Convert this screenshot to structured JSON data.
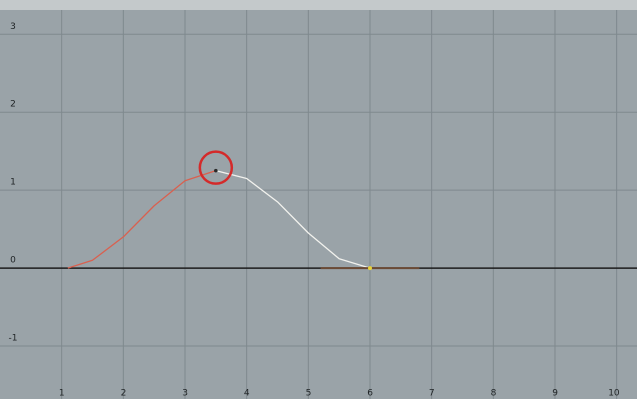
{
  "chart_data": {
    "type": "line",
    "series": [
      {
        "color": "#d9604f",
        "x": [
          1.1,
          1.5,
          2,
          2.5,
          3,
          3.5
        ],
        "values": [
          0,
          0.1,
          0.4,
          0.8,
          1.12,
          1.25
        ]
      },
      {
        "color": "#f2f2ee",
        "x": [
          3.5,
          4,
          4.5,
          5,
          5.5,
          6
        ],
        "values": [
          1.25,
          1.15,
          0.85,
          0.45,
          0.12,
          0
        ]
      },
      {
        "color": "#6b4a35",
        "x": [
          5.2,
          6.8
        ],
        "values": [
          0,
          0
        ]
      }
    ],
    "xlim": [
      0,
      10.33
    ],
    "ylim": [
      -1.68,
      3.44
    ],
    "xticks": [
      1,
      2,
      3,
      4,
      5,
      6,
      7,
      8,
      9,
      10
    ],
    "yticks": [
      -1,
      0,
      1,
      2,
      3
    ],
    "grid": true
  }
}
